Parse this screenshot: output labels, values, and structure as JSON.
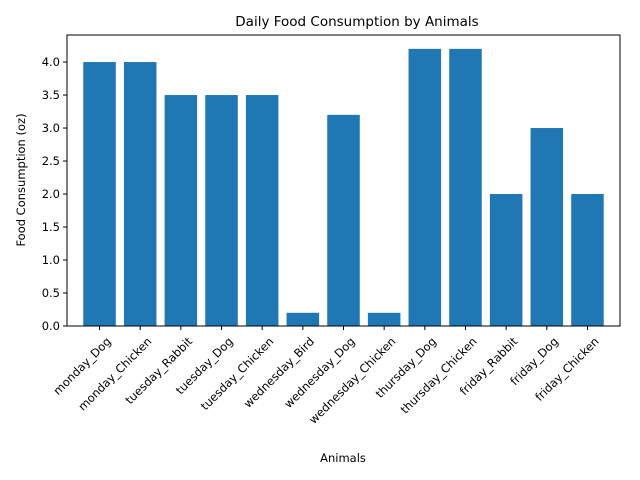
{
  "chart_data": {
    "type": "bar",
    "title": "Daily Food Consumption by Animals",
    "xlabel": "Animals",
    "ylabel": "Food Consumption (oz)",
    "categories": [
      "monday_Dog",
      "monday_Chicken",
      "tuesday_Rabbit",
      "tuesday_Dog",
      "tuesday_Chicken",
      "wednesday_Bird",
      "wednesday_Dog",
      "wednesday_Chicken",
      "thursday_Dog",
      "thursday_Chicken",
      "friday_Rabbit",
      "friday_Dog",
      "friday_Chicken"
    ],
    "values": [
      4.0,
      4.0,
      3.5,
      3.5,
      3.5,
      0.2,
      3.2,
      0.2,
      4.2,
      4.2,
      2.0,
      3.0,
      2.0
    ],
    "ylim": [
      0,
      4.41
    ],
    "yticks": [
      "0.0",
      "0.5",
      "1.0",
      "1.5",
      "2.0",
      "2.5",
      "3.0",
      "3.5",
      "4.0"
    ],
    "xtick_rotation": 45,
    "grid": false,
    "colors": {
      "bar": "#1f77b4"
    }
  }
}
